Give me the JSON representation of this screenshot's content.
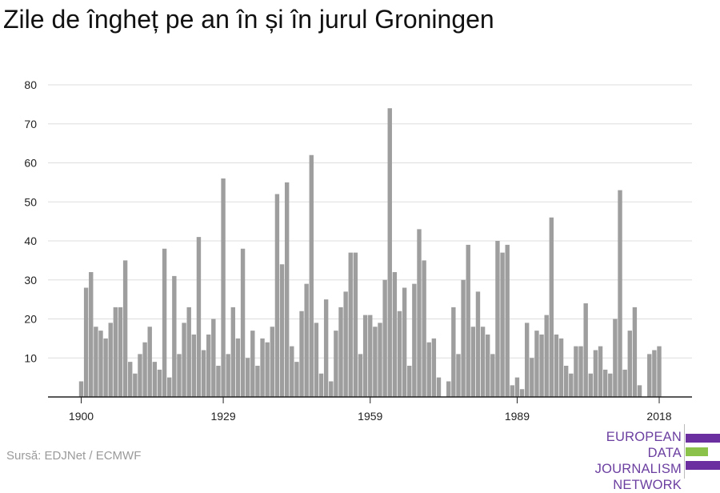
{
  "title": "Zile de îngheț pe an în și în jurul Groningen",
  "source": "Sursă: EDJNet / ECMWF",
  "logo": {
    "lines": [
      "EUROPEAN",
      "DATA JOURNALISM",
      "NETWORK"
    ],
    "colors": [
      "#6b2fa0",
      "#8bc34a",
      "#6b2fa0"
    ]
  },
  "colors": {
    "bar": "#9e9e9e",
    "grid": "#dddddd",
    "axis": "#222222",
    "text": "#222222"
  },
  "chart_data": {
    "type": "bar",
    "title": "Zile de îngheț pe an în și în jurul Groningen",
    "xlabel": "",
    "ylabel": "",
    "ylim": [
      0,
      80
    ],
    "yticks": [
      10,
      20,
      30,
      40,
      50,
      60,
      70,
      80
    ],
    "xticks": [
      1900,
      1929,
      1959,
      1989,
      2018
    ],
    "grid": true,
    "x": [
      1900,
      1901,
      1902,
      1903,
      1904,
      1905,
      1906,
      1907,
      1908,
      1909,
      1910,
      1911,
      1912,
      1913,
      1914,
      1915,
      1916,
      1917,
      1918,
      1919,
      1920,
      1921,
      1922,
      1923,
      1924,
      1925,
      1926,
      1927,
      1928,
      1929,
      1930,
      1931,
      1932,
      1933,
      1934,
      1935,
      1936,
      1937,
      1938,
      1939,
      1940,
      1941,
      1942,
      1943,
      1944,
      1945,
      1946,
      1947,
      1948,
      1949,
      1950,
      1951,
      1952,
      1953,
      1954,
      1955,
      1956,
      1957,
      1958,
      1959,
      1960,
      1961,
      1962,
      1963,
      1964,
      1965,
      1966,
      1967,
      1968,
      1969,
      1970,
      1971,
      1972,
      1973,
      1974,
      1975,
      1976,
      1977,
      1978,
      1979,
      1980,
      1981,
      1982,
      1983,
      1984,
      1985,
      1986,
      1987,
      1988,
      1989,
      1990,
      1991,
      1992,
      1993,
      1994,
      1995,
      1996,
      1997,
      1998,
      1999,
      2000,
      2001,
      2002,
      2003,
      2004,
      2005,
      2006,
      2007,
      2008,
      2009,
      2010,
      2011,
      2012,
      2013,
      2014,
      2015,
      2016,
      2017,
      2018
    ],
    "values": [
      4,
      28,
      32,
      18,
      17,
      15,
      19,
      23,
      23,
      35,
      9,
      6,
      11,
      14,
      18,
      9,
      7,
      38,
      5,
      31,
      11,
      19,
      23,
      16,
      41,
      12,
      16,
      20,
      8,
      56,
      11,
      23,
      15,
      38,
      10,
      17,
      8,
      15,
      14,
      18,
      52,
      34,
      55,
      13,
      9,
      22,
      29,
      62,
      19,
      6,
      25,
      4,
      17,
      23,
      27,
      37,
      37,
      11,
      21,
      21,
      18,
      19,
      30,
      74,
      32,
      22,
      28,
      8,
      29,
      43,
      35,
      14,
      15,
      5,
      0,
      4,
      23,
      11,
      30,
      39,
      18,
      27,
      18,
      16,
      11,
      40,
      37,
      39,
      3,
      5,
      2,
      19,
      10,
      17,
      16,
      21,
      46,
      16,
      15,
      8,
      6,
      13,
      13,
      24,
      6,
      12,
      13,
      7,
      6,
      20,
      53,
      7,
      17,
      23,
      3,
      0,
      11,
      12,
      13
    ]
  }
}
